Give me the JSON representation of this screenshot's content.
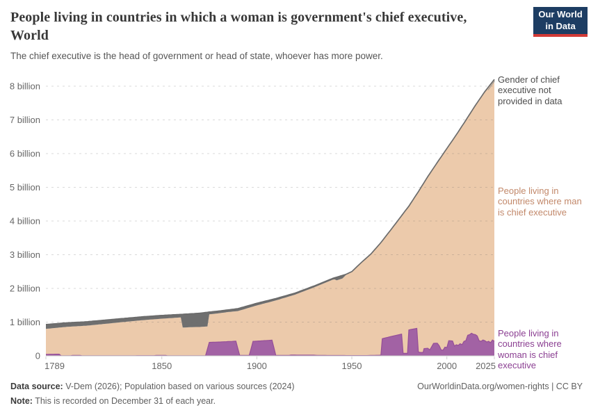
{
  "header": {
    "title": "People living in countries in which a woman is government's chief executive, World",
    "subtitle": "The chief executive is the head of government or head of state, whoever has more power.",
    "logo": {
      "line1": "Our World",
      "line2": "in Data"
    }
  },
  "chart_data": {
    "type": "area",
    "stacked": true,
    "title": "People living in countries in which a woman is government's chief executive, World",
    "xlabel": "",
    "ylabel": "",
    "x_range": [
      1789,
      2025
    ],
    "ylim_billions": [
      0,
      8.3
    ],
    "grid": true,
    "x_ticks": [
      1789,
      1850,
      1900,
      1950,
      2000,
      2025
    ],
    "y_tick_labels": [
      "0",
      "1 billion",
      "2 billion",
      "3 billion",
      "4 billion",
      "5 billion",
      "6 billion",
      "7 billion",
      "8 billion"
    ],
    "units": "billion people",
    "colors": {
      "woman_fill": "#a262a4",
      "woman_line": "#954e98",
      "man_fill": "#eccaab",
      "nodata_fill": "#6f6f6f",
      "top_line": "#6b6b6b",
      "grid_line": "#6e6e6e",
      "axis_text": "#666666",
      "baseline": "#c8c8c8"
    },
    "series": [
      {
        "id": "woman",
        "name": "People living in countries where woman is chief executive",
        "points": [
          [
            1789,
            0.045
          ],
          [
            1796,
            0.05
          ],
          [
            1797,
            0.005
          ],
          [
            1802,
            0.005
          ],
          [
            1803,
            0.014
          ],
          [
            1807,
            0.014
          ],
          [
            1808,
            0.004
          ],
          [
            1820,
            0.004
          ],
          [
            1835,
            0.005
          ],
          [
            1846,
            0.006
          ],
          [
            1847,
            0.012
          ],
          [
            1852,
            0.012
          ],
          [
            1853,
            0.005
          ],
          [
            1873,
            0.005
          ],
          [
            1875,
            0.4
          ],
          [
            1880,
            0.41
          ],
          [
            1889,
            0.435
          ],
          [
            1891,
            0.012
          ],
          [
            1896,
            0.012
          ],
          [
            1898,
            0.43
          ],
          [
            1908,
            0.465
          ],
          [
            1910,
            0.012
          ],
          [
            1917,
            0.012
          ],
          [
            1918,
            0.022
          ],
          [
            1930,
            0.02
          ],
          [
            1932,
            0.012
          ],
          [
            1945,
            0.01
          ],
          [
            1950,
            0.008
          ],
          [
            1958,
            0.009
          ],
          [
            1960,
            0.013
          ],
          [
            1965.3,
            0.018
          ],
          [
            1966,
            0.51
          ],
          [
            1970,
            0.565
          ],
          [
            1976.2,
            0.645
          ],
          [
            1977,
            0.075
          ],
          [
            1979.3,
            0.075
          ],
          [
            1980,
            0.77
          ],
          [
            1984.2,
            0.815
          ],
          [
            1985,
            0.115
          ],
          [
            1986,
            0.1
          ],
          [
            1987.5,
            0.1
          ],
          [
            1988,
            0.215
          ],
          [
            1990,
            0.225
          ],
          [
            1991,
            0.175
          ],
          [
            1992,
            0.27
          ],
          [
            1993,
            0.37
          ],
          [
            1995,
            0.375
          ],
          [
            1996,
            0.3
          ],
          [
            1997,
            0.175
          ],
          [
            1998,
            0.17
          ],
          [
            1999,
            0.26
          ],
          [
            2000,
            0.245
          ],
          [
            2001,
            0.45
          ],
          [
            2003,
            0.44
          ],
          [
            2004,
            0.29
          ],
          [
            2005,
            0.33
          ],
          [
            2006,
            0.31
          ],
          [
            2007,
            0.36
          ],
          [
            2008,
            0.33
          ],
          [
            2009,
            0.43
          ],
          [
            2010,
            0.45
          ],
          [
            2011,
            0.61
          ],
          [
            2012,
            0.63
          ],
          [
            2013,
            0.67
          ],
          [
            2014,
            0.64
          ],
          [
            2015,
            0.63
          ],
          [
            2016,
            0.59
          ],
          [
            2017,
            0.45
          ],
          [
            2018,
            0.43
          ],
          [
            2019,
            0.47
          ],
          [
            2020,
            0.45
          ],
          [
            2021,
            0.41
          ],
          [
            2022,
            0.43
          ],
          [
            2023,
            0.39
          ],
          [
            2024,
            0.47
          ],
          [
            2025,
            0.43
          ]
        ]
      },
      {
        "id": "nodata",
        "name": "Gender of chief executive not provided in data",
        "points": [
          [
            1789,
            0.13
          ],
          [
            1800,
            0.12
          ],
          [
            1815,
            0.115
          ],
          [
            1830,
            0.105
          ],
          [
            1845,
            0.1
          ],
          [
            1855,
            0.095
          ],
          [
            1860,
            0.09
          ],
          [
            1861,
            0.395
          ],
          [
            1867,
            0.4
          ],
          [
            1874,
            0.42
          ],
          [
            1875,
            0.07
          ],
          [
            1885,
            0.065
          ],
          [
            1890,
            0.072
          ],
          [
            1900,
            0.065
          ],
          [
            1910,
            0.057
          ],
          [
            1920,
            0.047
          ],
          [
            1930,
            0.042
          ],
          [
            1940,
            0.04
          ],
          [
            1941,
            0.05
          ],
          [
            1942,
            0.095
          ],
          [
            1945,
            0.09
          ],
          [
            1946,
            0.055
          ],
          [
            1947,
            0.015
          ],
          [
            1948,
            0.006
          ],
          [
            1950,
            0.003
          ],
          [
            1954,
            0
          ],
          [
            2025,
            0
          ]
        ]
      },
      {
        "id": "total",
        "name": "World population (top of stack)",
        "points": [
          [
            1789,
            0.93
          ],
          [
            1800,
            0.98
          ],
          [
            1810,
            1.01
          ],
          [
            1820,
            1.06
          ],
          [
            1830,
            1.11
          ],
          [
            1840,
            1.16
          ],
          [
            1850,
            1.2
          ],
          [
            1860,
            1.23
          ],
          [
            1870,
            1.265
          ],
          [
            1875,
            1.3
          ],
          [
            1880,
            1.33
          ],
          [
            1890,
            1.4
          ],
          [
            1900,
            1.56
          ],
          [
            1910,
            1.7
          ],
          [
            1920,
            1.86
          ],
          [
            1930,
            2.07
          ],
          [
            1940,
            2.3
          ],
          [
            1947,
            2.42
          ],
          [
            1950,
            2.5
          ],
          [
            1955,
            2.77
          ],
          [
            1960,
            3.02
          ],
          [
            1965,
            3.34
          ],
          [
            1970,
            3.7
          ],
          [
            1975,
            4.07
          ],
          [
            1980,
            4.44
          ],
          [
            1985,
            4.87
          ],
          [
            1990,
            5.32
          ],
          [
            1995,
            5.74
          ],
          [
            2000,
            6.15
          ],
          [
            2005,
            6.56
          ],
          [
            2010,
            6.99
          ],
          [
            2015,
            7.43
          ],
          [
            2020,
            7.84
          ],
          [
            2025,
            8.2
          ]
        ]
      }
    ],
    "derived": "man_fill area = total - woman - nodata",
    "annotations": [
      {
        "id": "nodata",
        "text": "Gender of chief executive not provided in data"
      },
      {
        "id": "man",
        "text": "People living in countries where man is chief executive"
      },
      {
        "id": "woman",
        "text": "People living in countries where woman is chief executive"
      }
    ],
    "legend_position": "right-side-labels"
  },
  "footer": {
    "source_label": "Data source:",
    "source_value": "V-Dem (2026); Population based on various sources (2024)",
    "note_label": "Note:",
    "note_value": "This is recorded on December 31 of each year.",
    "link": "OurWorldinData.org/women-rights",
    "separator": "|",
    "license": "CC BY"
  }
}
